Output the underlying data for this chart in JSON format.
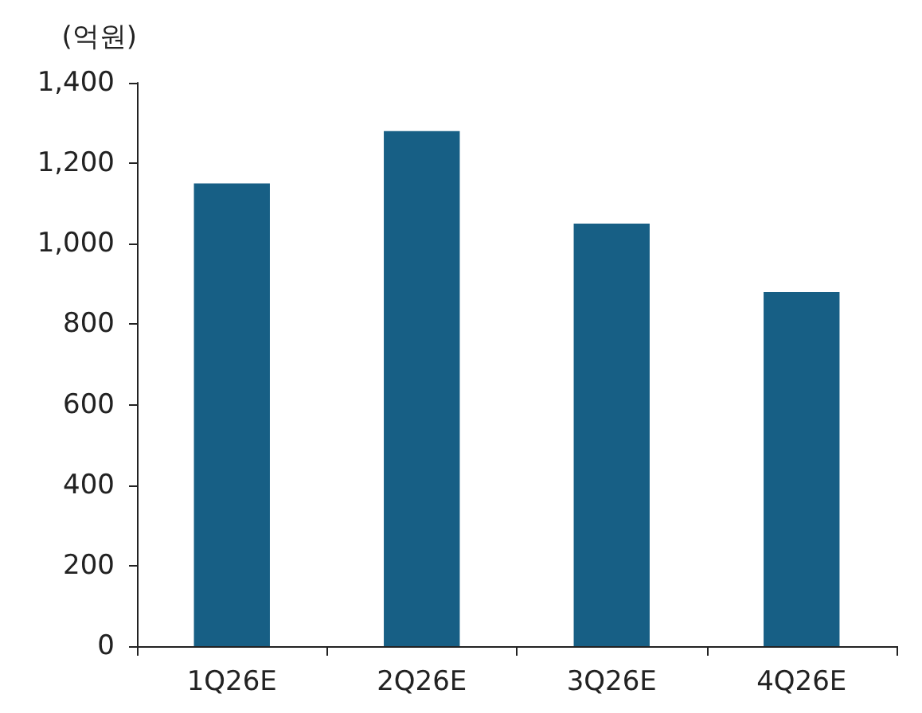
{
  "chart_data": {
    "type": "bar",
    "ylabel": "(억원)",
    "categories": [
      "1Q26E",
      "2Q26E",
      "3Q26E",
      "4Q26E"
    ],
    "values": [
      1150,
      1280,
      1050,
      880
    ],
    "color": "#175f85",
    "ylim": [
      0,
      1400
    ],
    "yticks": [
      {
        "value": 0,
        "label": "0"
      },
      {
        "value": 200,
        "label": "200"
      },
      {
        "value": 400,
        "label": "400"
      },
      {
        "value": 600,
        "label": "600"
      },
      {
        "value": 800,
        "label": "800"
      },
      {
        "value": 1000,
        "label": "1,000"
      },
      {
        "value": 1200,
        "label": "1,200"
      },
      {
        "value": 1400,
        "label": "1,400"
      }
    ],
    "grid": false
  }
}
